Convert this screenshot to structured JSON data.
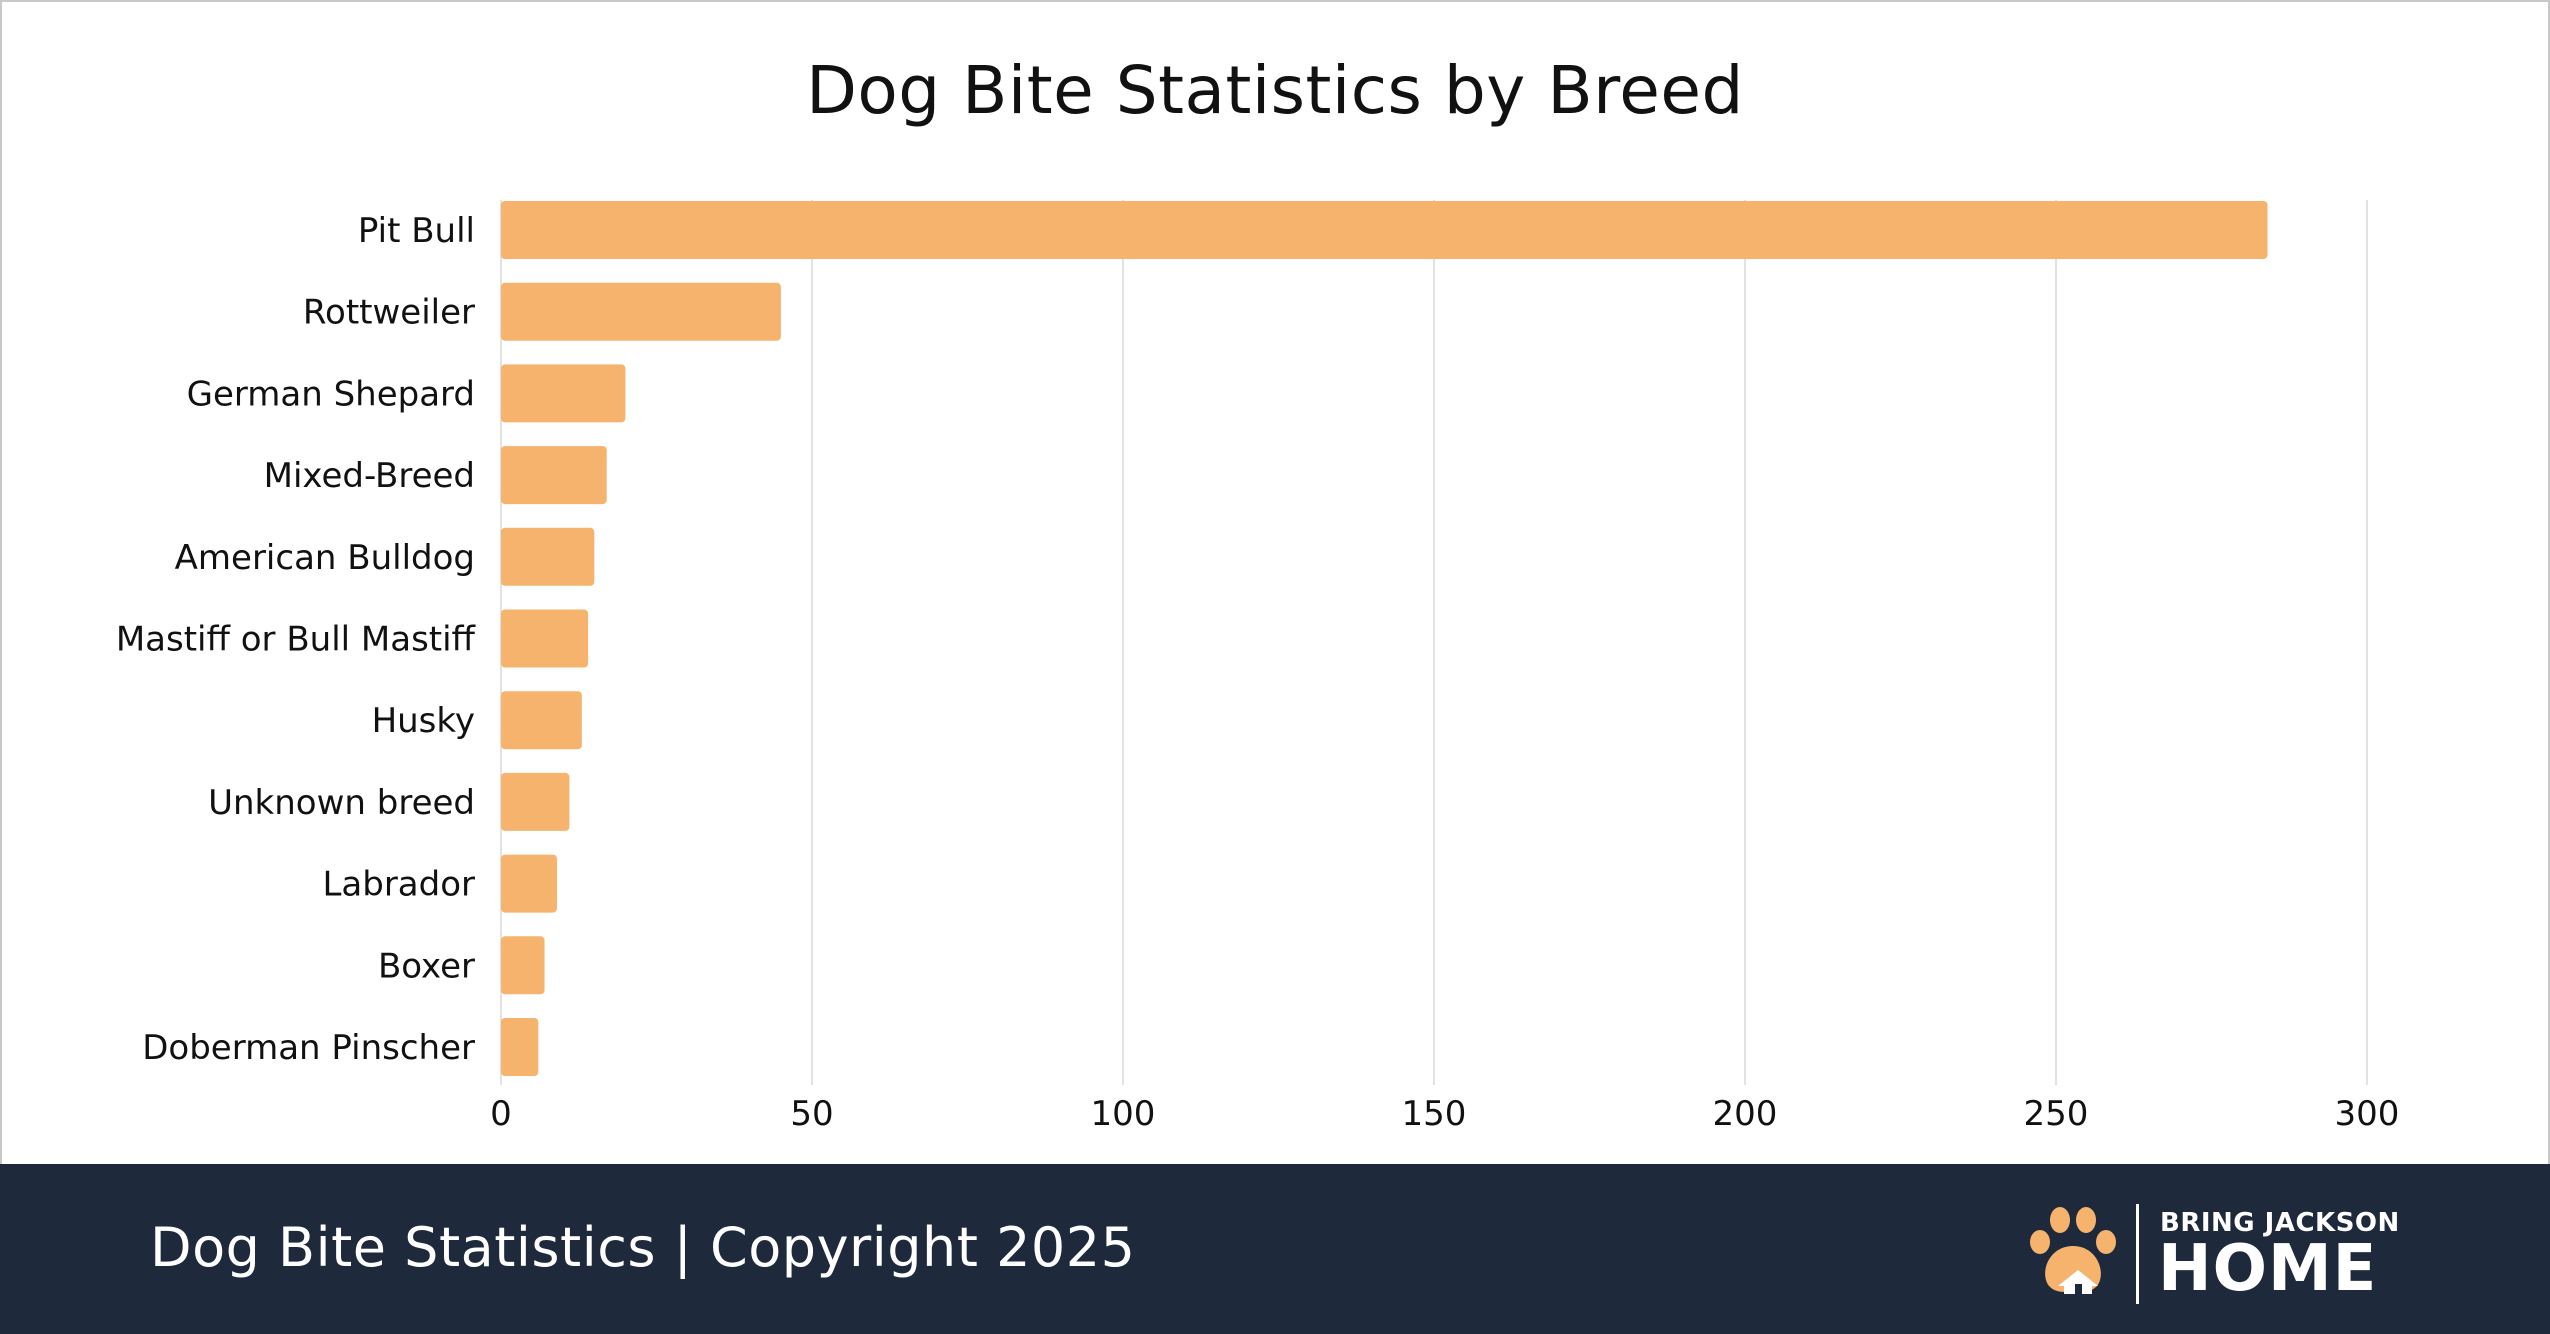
{
  "colors": {
    "bar": "#f5b36e",
    "grid": "#e2e2e2",
    "footer_bg": "#1e293b",
    "text": "#111111"
  },
  "chart_data": {
    "type": "bar",
    "orientation": "horizontal",
    "title": "Dog Bite Statistics by Breed",
    "xlabel": "",
    "ylabel": "",
    "xlim": [
      0,
      300
    ],
    "xticks": [
      0,
      50,
      100,
      150,
      200,
      250,
      300
    ],
    "grid": true,
    "categories": [
      "Pit Bull",
      "Rottweiler",
      "German Shepard",
      "Mixed-Breed",
      "American Bulldog",
      "Mastiff or Bull Mastiff",
      "Husky",
      "Unknown breed",
      "Labrador",
      "Boxer",
      "Doberman Pinscher"
    ],
    "values": [
      284,
      45,
      20,
      17,
      15,
      14,
      13,
      11,
      9,
      7,
      6
    ]
  },
  "footer": {
    "text": "Dog Bite Statistics  |  Copyright 2025",
    "logo_top": "BRING JACKSON",
    "logo_bottom": "HOME",
    "logo_icon": "paw-house-icon"
  }
}
